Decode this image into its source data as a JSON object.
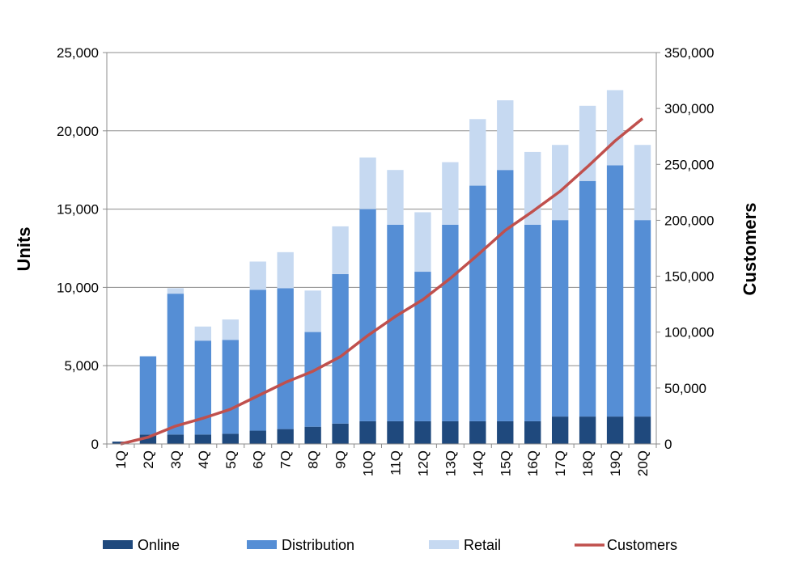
{
  "chart_data": {
    "type": "bar",
    "stacked": true,
    "categories": [
      "1Q",
      "2Q",
      "3Q",
      "4Q",
      "5Q",
      "6Q",
      "7Q",
      "8Q",
      "9Q",
      "10Q",
      "11Q",
      "12Q",
      "13Q",
      "14Q",
      "15Q",
      "16Q",
      "17Q",
      "18Q",
      "19Q",
      "20Q"
    ],
    "series": [
      {
        "name": "Online",
        "type": "bar",
        "axis": "left",
        "color": "#1f497d",
        "values": [
          150,
          600,
          600,
          600,
          650,
          850,
          950,
          1100,
          1300,
          1450,
          1450,
          1450,
          1450,
          1450,
          1450,
          1450,
          1750,
          1750,
          1750,
          1750
        ]
      },
      {
        "name": "Distribution",
        "type": "bar",
        "axis": "left",
        "color": "#558ed5",
        "values": [
          0,
          5000,
          9000,
          6000,
          6000,
          9000,
          9000,
          6050,
          9550,
          13550,
          12550,
          9550,
          12550,
          15050,
          16050,
          12550,
          12550,
          15050,
          16050,
          12550
        ]
      },
      {
        "name": "Retail",
        "type": "bar",
        "axis": "left",
        "color": "#c6d9f1",
        "values": [
          0,
          0,
          350,
          900,
          1300,
          1800,
          2300,
          2650,
          3050,
          3300,
          3500,
          3800,
          4000,
          4250,
          4450,
          4650,
          4800,
          4800,
          4800,
          4800
        ]
      },
      {
        "name": "Customers",
        "type": "line",
        "axis": "right",
        "color": "#c0504d",
        "values": [
          0,
          6000,
          16000,
          23000,
          31000,
          43000,
          55000,
          65000,
          78000,
          97000,
          114000,
          129000,
          148000,
          169000,
          191000,
          208000,
          226000,
          248000,
          271000,
          291000
        ]
      }
    ],
    "y_left": {
      "label": "Units",
      "min": 0,
      "max": 25000,
      "ticks": [
        "0",
        "5,000",
        "10,000",
        "15,000",
        "20,000",
        "25,000"
      ]
    },
    "y_right": {
      "label": "Customers",
      "min": 0,
      "max": 350000,
      "ticks": [
        "0",
        "50,000",
        "100,000",
        "150,000",
        "200,000",
        "250,000",
        "300,000",
        "350,000"
      ]
    },
    "grid": true,
    "legend": {
      "position": "bottom",
      "entries": [
        "Online",
        "Distribution",
        "Retail",
        "Customers"
      ]
    }
  }
}
